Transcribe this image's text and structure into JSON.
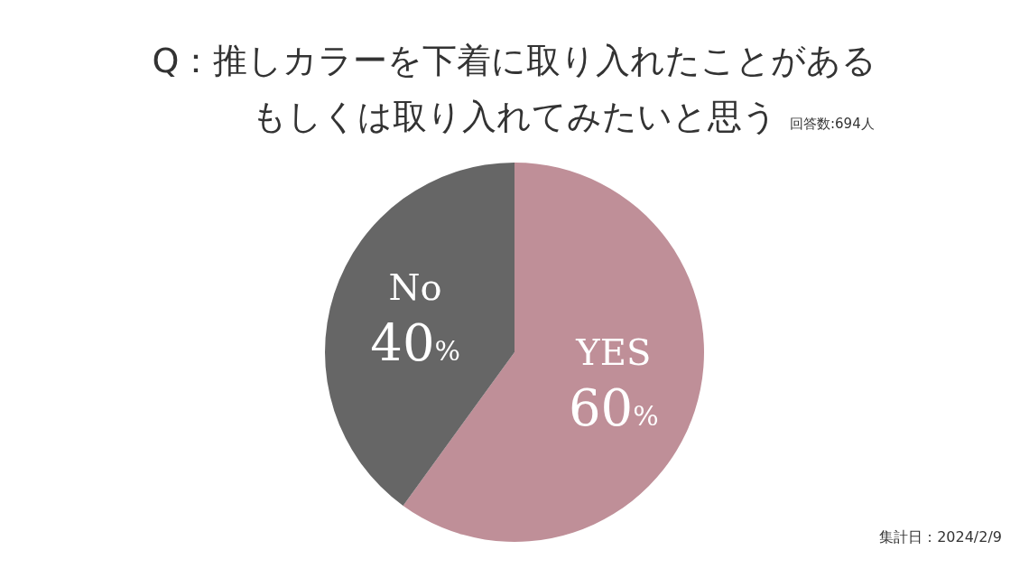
{
  "chart_data": {
    "type": "pie",
    "title": "Q：推しカラーを下着に取り入れたことがある",
    "subtitle": "もしくは取り入れてみたいと思う",
    "categories": [
      "YES",
      "No"
    ],
    "values": [
      60,
      40
    ],
    "value_labels": [
      "60%",
      "40%"
    ],
    "colors": [
      "#bf8f98",
      "#666666"
    ],
    "annotations": [
      "回答数:694人",
      "集計日：2024/2/9"
    ]
  }
}
